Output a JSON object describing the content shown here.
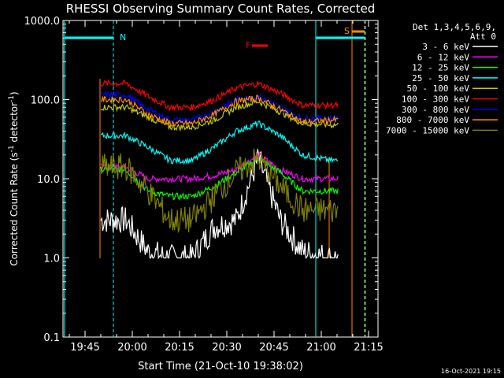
{
  "chart_data": {
    "type": "line",
    "title": "RHESSI Observing Summary Count Rates, Corrected",
    "xlabel": "Start Time (21-Oct-10 19:38:02)",
    "ylabel_main": "Corrected Count Rate (s",
    "ylabel_sup": "-1",
    "ylabel_mid": " detector",
    "ylabel_sup2": "-1",
    "ylabel_end": ")",
    "y_scale": "log",
    "ylim": [
      0.1,
      1000
    ],
    "xlim": [
      "19:38",
      "21:18"
    ],
    "x_ticks": [
      "19:45",
      "20:00",
      "20:15",
      "20:30",
      "20:45",
      "21:00",
      "21:15"
    ],
    "y_ticks": [
      "0.1",
      "1.0",
      "10.0",
      "100.0",
      "1000.0"
    ],
    "legend_header": [
      "Det 1,3,4,5,6,9,",
      "Att 0"
    ],
    "legend_position": "top-right",
    "series": [
      {
        "name": "3 - 6 keV",
        "color": "#000000"
      },
      {
        "name": "6 - 12 keV",
        "color": "#ff00ff"
      },
      {
        "name": "12 - 25 keV",
        "color": "#00ff00"
      },
      {
        "name": "25 - 50 keV",
        "color": "#00ffff"
      },
      {
        "name": "50 - 100 keV",
        "color": "#c8c800"
      },
      {
        "name": "100 - 300 keV",
        "color": "#ff0000"
      },
      {
        "name": "300 - 800 keV",
        "color": "#0000ff"
      },
      {
        "name": "800 - 7000 keV",
        "color": "#ff8c00"
      },
      {
        "name": "7000 - 15000 keV",
        "color": "#808000"
      }
    ],
    "data": {
      "time": [
        "19:58",
        "20:05",
        "20:12",
        "20:19",
        "20:26",
        "20:33",
        "20:40",
        "20:47",
        "20:54",
        "21:03"
      ],
      "s_3_6": [
        3.0,
        1.2,
        1.0,
        1.0,
        2.5,
        3.0,
        18.0,
        3.0,
        1.2,
        1.0
      ],
      "s_6_12": [
        14.0,
        10.0,
        10.0,
        10.0,
        11.0,
        13.0,
        20.0,
        13.0,
        10.0,
        10.0
      ],
      "s_12_25": [
        13.0,
        7.0,
        6.0,
        6.0,
        8.0,
        12.0,
        18.0,
        12.0,
        7.0,
        7.0
      ],
      "s_25_50": [
        35.0,
        25.0,
        17.0,
        17.0,
        25.0,
        40.0,
        50.0,
        35.0,
        20.0,
        17.0
      ],
      "s_50_100": [
        80.0,
        60.0,
        45.0,
        45.0,
        55.0,
        80.0,
        95.0,
        70.0,
        50.0,
        48.0
      ],
      "s_100_300": [
        160.0,
        110.0,
        80.0,
        80.0,
        100.0,
        140.0,
        160.0,
        120.0,
        85.0,
        85.0
      ],
      "s_300_800": [
        115.0,
        75.0,
        55.0,
        55.0,
        70.0,
        100.0,
        110.0,
        80.0,
        58.0,
        58.0
      ],
      "s_800_7000": [
        100.0,
        65.0,
        50.0,
        50.0,
        65.0,
        95.0,
        105.0,
        75.0,
        52.0,
        55.0
      ],
      "s_7000_15000": [
        14.0,
        7.0,
        3.0,
        3.0,
        6.0,
        12.0,
        18.0,
        8.0,
        4.0,
        4.0
      ]
    },
    "annotations": [
      {
        "text": "N",
        "color": "#00ffff"
      },
      {
        "text": "S",
        "color": "#ff8c00"
      },
      {
        "text": "F",
        "color": "#ff0000"
      }
    ],
    "footer": "16-Oct-2021 19:15"
  }
}
